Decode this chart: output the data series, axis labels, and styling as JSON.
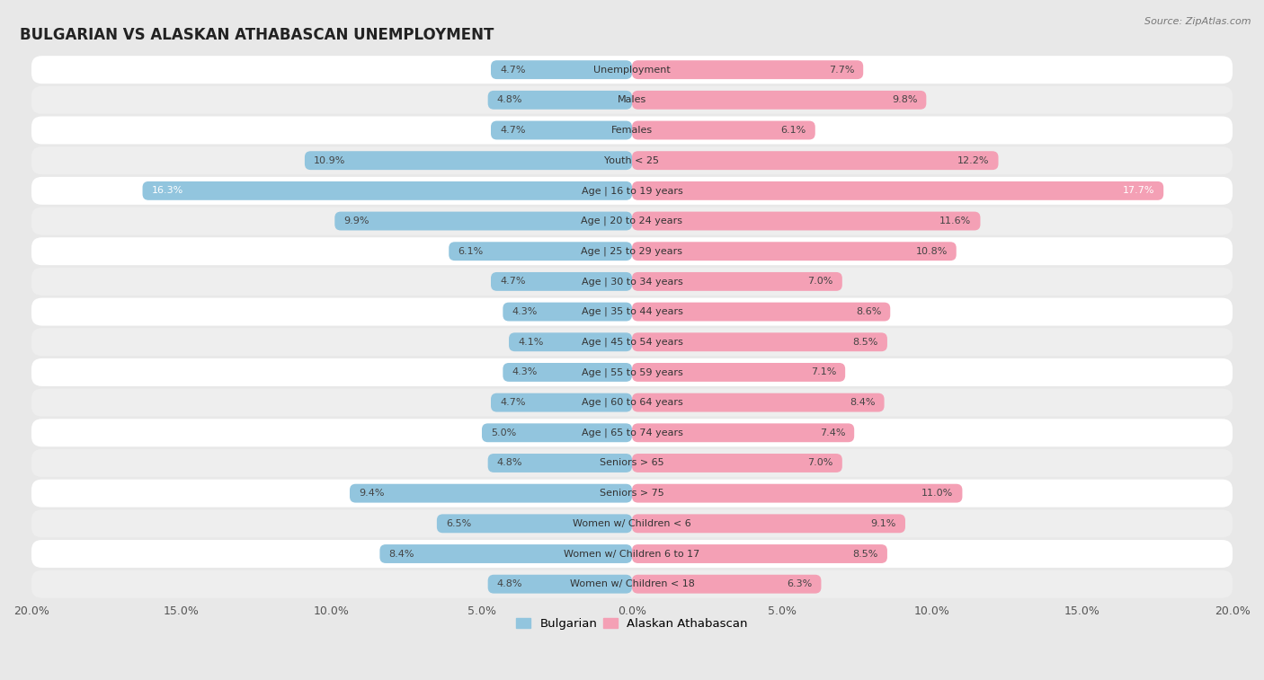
{
  "title": "BULGARIAN VS ALASKAN ATHABASCAN UNEMPLOYMENT",
  "source": "Source: ZipAtlas.com",
  "categories": [
    "Unemployment",
    "Males",
    "Females",
    "Youth < 25",
    "Age | 16 to 19 years",
    "Age | 20 to 24 years",
    "Age | 25 to 29 years",
    "Age | 30 to 34 years",
    "Age | 35 to 44 years",
    "Age | 45 to 54 years",
    "Age | 55 to 59 years",
    "Age | 60 to 64 years",
    "Age | 65 to 74 years",
    "Seniors > 65",
    "Seniors > 75",
    "Women w/ Children < 6",
    "Women w/ Children 6 to 17",
    "Women w/ Children < 18"
  ],
  "bulgarian": [
    4.7,
    4.8,
    4.7,
    10.9,
    16.3,
    9.9,
    6.1,
    4.7,
    4.3,
    4.1,
    4.3,
    4.7,
    5.0,
    4.8,
    9.4,
    6.5,
    8.4,
    4.8
  ],
  "alaskan": [
    7.7,
    9.8,
    6.1,
    12.2,
    17.7,
    11.6,
    10.8,
    7.0,
    8.6,
    8.5,
    7.1,
    8.4,
    7.4,
    7.0,
    11.0,
    9.1,
    8.5,
    6.3
  ],
  "bulgarian_color": "#92c5de",
  "alaskan_color": "#f4a0b5",
  "row_white": "#f5f5f5",
  "row_gray": "#e8e8e8",
  "bg_color": "#e8e8e8",
  "max_val": 20.0,
  "bar_height": 0.62,
  "label_fontsize": 8.0,
  "title_fontsize": 12,
  "legend_fontsize": 9.5,
  "value_label_color": "#444444"
}
